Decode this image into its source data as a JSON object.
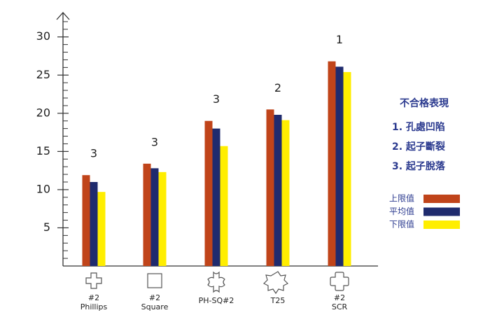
{
  "chart_data": {
    "type": "bar",
    "categories": [
      [
        "#2",
        "Phillips"
      ],
      [
        "#2",
        "Square"
      ],
      [
        "PH-SQ#2"
      ],
      [
        "T25"
      ],
      [
        "#2",
        "SCR"
      ]
    ],
    "series": [
      {
        "name": "上限值",
        "color": "#c0441a",
        "values": [
          11.9,
          13.4,
          19.0,
          20.5,
          26.8
        ]
      },
      {
        "name": "平均值",
        "color": "#1f2b6e",
        "values": [
          11.0,
          12.8,
          18.0,
          19.8,
          26.1
        ]
      },
      {
        "name": "下限值",
        "color": "#ffee00",
        "values": [
          9.7,
          12.3,
          15.7,
          19.1,
          25.4
        ]
      }
    ],
    "annotations": [
      "3",
      "3",
      "3",
      "2",
      "1"
    ],
    "ylim": [
      0,
      33
    ],
    "yticks": [
      5,
      10,
      15,
      20,
      25,
      30
    ],
    "minor_yticks": [
      1,
      2,
      3,
      4,
      6,
      7,
      8,
      9,
      11,
      12,
      13,
      14,
      16,
      17,
      18,
      19,
      21,
      22,
      23,
      24,
      26,
      27,
      28,
      29,
      31,
      32
    ],
    "notes_title": "不合格表現",
    "notes": [
      "1. 孔處凹陷",
      "2. 起子斷裂",
      "3. 起子脫落"
    ]
  }
}
